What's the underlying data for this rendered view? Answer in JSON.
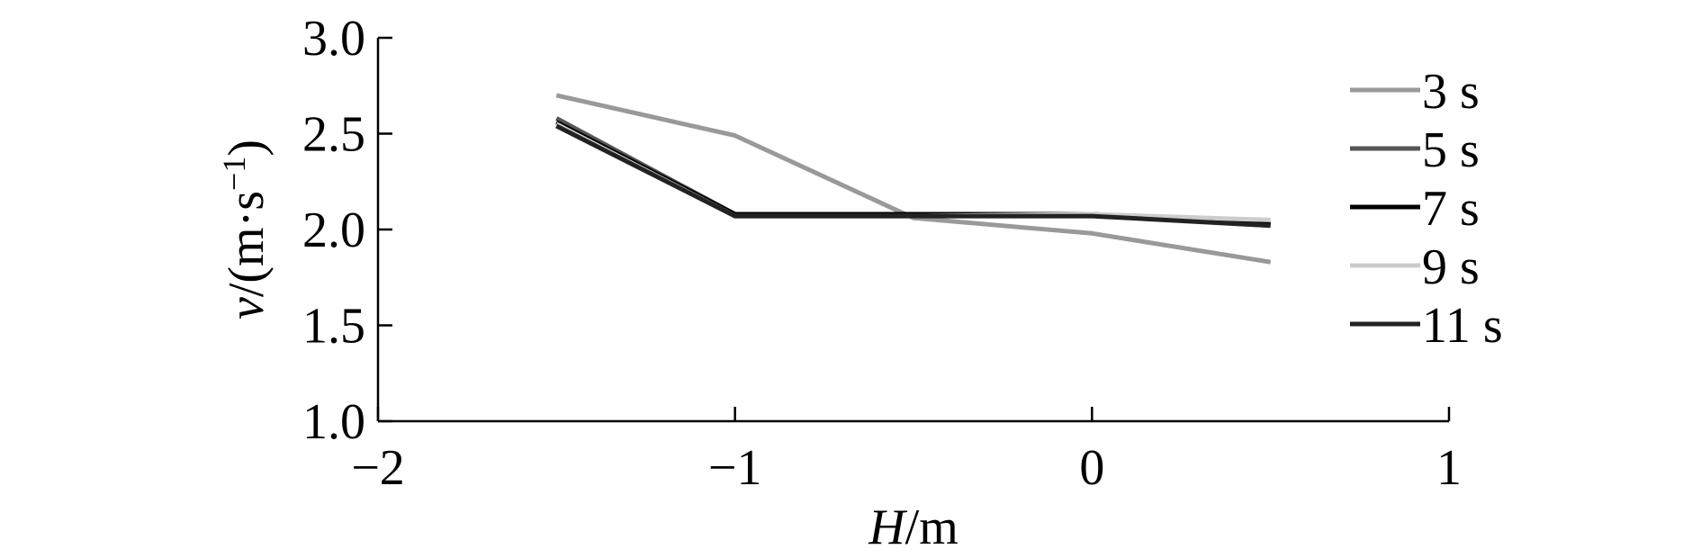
{
  "chart_data": {
    "type": "line",
    "title": "",
    "xlabel": {
      "var": "H",
      "unit": "/m"
    },
    "ylabel": {
      "var": "v",
      "unit": "/(m·s",
      "exp": "−1",
      "close": ")"
    },
    "xlim": [
      -2,
      1
    ],
    "ylim": [
      1.0,
      3.0
    ],
    "xticks": [
      -2,
      -1,
      0,
      1
    ],
    "xtick_labels": [
      "−2",
      "−1",
      "0",
      "1"
    ],
    "yticks": [
      1.0,
      1.5,
      2.0,
      2.5,
      3.0
    ],
    "ytick_labels": [
      "1.0",
      "1.5",
      "2.0",
      "2.5",
      "3.0"
    ],
    "grid": false,
    "legend_position": "right",
    "series": [
      {
        "name": "3 s",
        "color": "#999999",
        "x": [
          -1.5,
          -1.0,
          -0.5,
          0.0,
          0.5
        ],
        "y": [
          2.7,
          2.49,
          2.06,
          1.98,
          1.83
        ]
      },
      {
        "name": "5 s",
        "color": "#555555",
        "x": [
          -1.5,
          -1.0,
          -0.5,
          0.0,
          0.5
        ],
        "y": [
          2.58,
          2.08,
          2.08,
          2.08,
          2.03
        ]
      },
      {
        "name": "7 s",
        "color": "#000000",
        "x": [
          -1.5,
          -1.0,
          -0.5,
          0.0,
          0.5
        ],
        "y": [
          2.56,
          2.08,
          2.08,
          2.08,
          2.03
        ]
      },
      {
        "name": "9 s",
        "color": "#cccccc",
        "x": [
          -1.5,
          -1.0,
          -0.5,
          0.0,
          0.5
        ],
        "y": [
          2.55,
          2.07,
          2.07,
          2.08,
          2.05
        ]
      },
      {
        "name": "11 s",
        "color": "#222222",
        "x": [
          -1.5,
          -1.0,
          -0.5,
          0.0,
          0.5
        ],
        "y": [
          2.54,
          2.07,
          2.07,
          2.07,
          2.02
        ]
      }
    ]
  }
}
